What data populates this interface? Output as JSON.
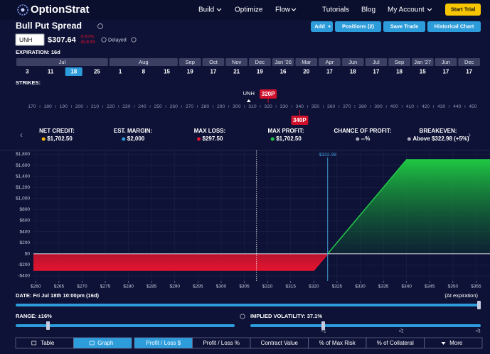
{
  "nav": {
    "brand": "OptionStrat",
    "items": [
      "Build",
      "Optimize",
      "Flow",
      "Tutorials",
      "Blog",
      "My Account"
    ],
    "cta": "Start Trial"
  },
  "header": {
    "title": "Bull Put Spread",
    "actions": [
      "Add",
      "Positions (2)",
      "Save Trade",
      "Historical Chart"
    ]
  },
  "quote": {
    "symbol": "UNH",
    "price": "$307.64",
    "change_pct": "-5.67%",
    "change": "-$18.50",
    "status": "Delayed"
  },
  "expiration": {
    "label": "EXPIRATION: 16d",
    "months": [
      {
        "name": "Jul",
        "days": [
          3,
          11,
          18,
          25
        ],
        "selected": 18
      },
      {
        "name": "Aug",
        "days": [
          1,
          8,
          15
        ]
      },
      {
        "name": "Sep",
        "days": [
          19
        ]
      },
      {
        "name": "Oct",
        "days": [
          17
        ]
      },
      {
        "name": "Nov",
        "days": [
          21
        ]
      },
      {
        "name": "Dec",
        "days": [
          19
        ]
      },
      {
        "name": "Jan '26",
        "days": [
          16
        ]
      },
      {
        "name": "Mar",
        "days": [
          20
        ]
      },
      {
        "name": "Apr",
        "days": [
          17
        ]
      },
      {
        "name": "Jun",
        "days": [
          18
        ]
      },
      {
        "name": "Jul",
        "days": [
          17
        ]
      },
      {
        "name": "Sep",
        "days": [
          18
        ]
      },
      {
        "name": "Jan '27",
        "days": [
          15
        ]
      },
      {
        "name": "Jun",
        "days": [
          17
        ]
      },
      {
        "name": "Dec",
        "days": [
          17
        ]
      }
    ]
  },
  "strikes": {
    "label": "STRIKES:",
    "underlying": "UNH",
    "ticks": [
      170,
      180,
      190,
      200,
      210,
      220,
      230,
      240,
      250,
      260,
      270,
      280,
      290,
      300,
      310,
      320,
      330,
      340,
      350,
      360,
      370,
      380,
      390,
      400,
      410,
      420,
      430,
      440,
      450
    ],
    "legs": [
      {
        "label": "320P",
        "strike": 320,
        "side": "top"
      },
      {
        "label": "340P",
        "strike": 340,
        "side": "bottom"
      }
    ]
  },
  "stats": [
    {
      "label": "NET CREDIT:",
      "value": "$1,702.50"
    },
    {
      "label": "EST. MARGIN:",
      "value": "$2,000"
    },
    {
      "label": "MAX LOSS:",
      "value": "$297.50"
    },
    {
      "label": "MAX PROFIT:",
      "value": "$1,702.50"
    },
    {
      "label": "CHANCE OF PROFIT:",
      "value": "--%"
    },
    {
      "label": "BREAKEVEN:",
      "value": "Above $322.98 (+5%)"
    }
  ],
  "chart_data": {
    "type": "line",
    "x": [
      259.5,
      320,
      340,
      358
    ],
    "values": [
      -297.5,
      -297.5,
      1702.5,
      1702.5
    ],
    "spot": 307.64,
    "breakeven": {
      "value": 322.98,
      "label": "$322.98"
    },
    "xlim": [
      259.5,
      358
    ],
    "ylim": [
      -490,
      1870
    ],
    "xticks": [
      {
        "value": 260,
        "label": "$260"
      },
      {
        "value": 265,
        "label": "$265"
      },
      {
        "value": 270,
        "label": "$270"
      },
      {
        "value": 275,
        "label": "$275"
      },
      {
        "value": 280,
        "label": "$280"
      },
      {
        "value": 285,
        "label": "$285"
      },
      {
        "value": 290,
        "label": "$290"
      },
      {
        "value": 295,
        "label": "$295"
      },
      {
        "value": 300,
        "label": "$300"
      },
      {
        "value": 305,
        "label": "$305"
      },
      {
        "value": 310,
        "label": "$310"
      },
      {
        "value": 315,
        "label": "$315"
      },
      {
        "value": 320,
        "label": "$320"
      },
      {
        "value": 325,
        "label": "$325"
      },
      {
        "value": 330,
        "label": "$330"
      },
      {
        "value": 335,
        "label": "$335"
      },
      {
        "value": 340,
        "label": "$340"
      },
      {
        "value": 345,
        "label": "$345"
      },
      {
        "value": 350,
        "label": "$350"
      },
      {
        "value": 355,
        "label": "$355"
      }
    ],
    "yticks": [
      {
        "value": 1800,
        "label": "$1,800"
      },
      {
        "value": 1600,
        "label": "$1,600"
      },
      {
        "value": 1400,
        "label": "$1,400"
      },
      {
        "value": 1200,
        "label": "$1,200"
      },
      {
        "value": 1000,
        "label": "$1,000"
      },
      {
        "value": 800,
        "label": "$800"
      },
      {
        "value": 600,
        "label": "$600"
      },
      {
        "value": 400,
        "label": "$400"
      },
      {
        "value": 200,
        "label": "$200"
      },
      {
        "value": 0,
        "label": "$0"
      },
      {
        "value": -200,
        "label": "-$200"
      },
      {
        "value": -400,
        "label": "-$400"
      }
    ],
    "grid": true,
    "profit_color": "#22c94a",
    "loss_color": "#e3142f"
  },
  "date": {
    "label": "DATE: Fri Jul 18th 10:00pm (16d)",
    "note": "(At expiration)"
  },
  "range": {
    "label": "RANGE: ±16%"
  },
  "iv": {
    "label": "IMPLIED VOLATILITY: 37.1%",
    "marks": [
      "×1",
      "×2",
      "×3"
    ]
  },
  "tabs": {
    "view": [
      "Table",
      "Graph"
    ],
    "active_view": 1,
    "metric": [
      "Profit / Loss $",
      "Profit / Loss %",
      "Contract Value",
      "% of Max Risk",
      "% of Collateral",
      "More"
    ],
    "active_metric": 0
  }
}
